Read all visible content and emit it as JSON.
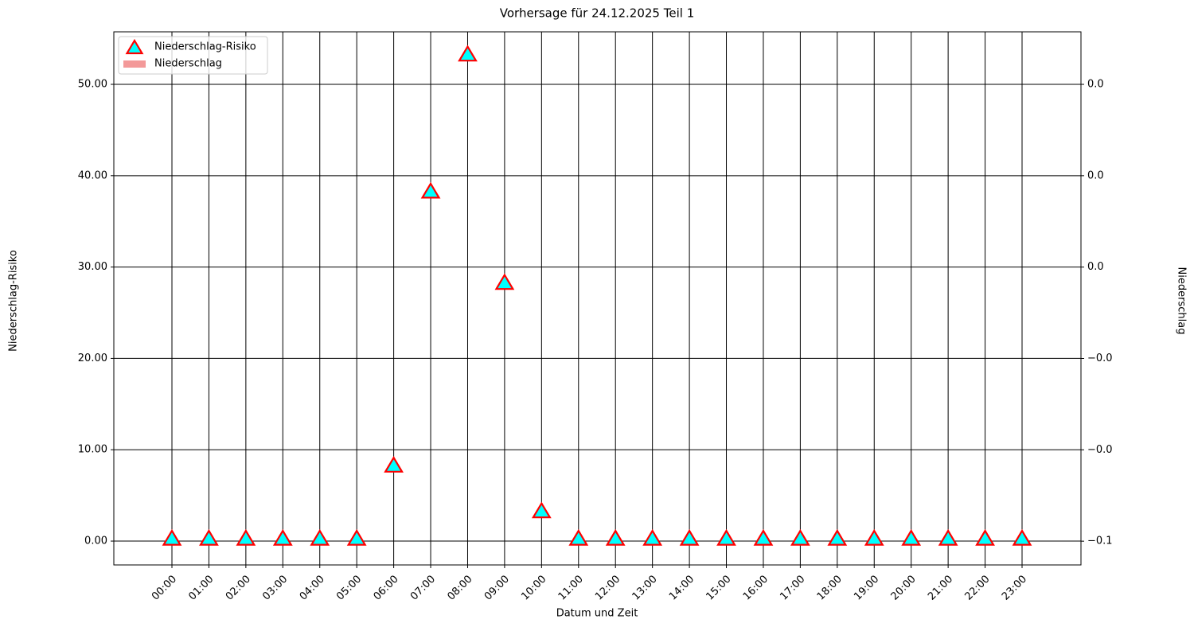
{
  "chart_data": {
    "type": "combo",
    "title": "Vorhersage für 24.12.2025 Teil 1",
    "x_label": "Datum und Zeit",
    "y_label": "Niederschlag-Risiko",
    "y2_label": "Niederschlag",
    "categories": [
      "00:00",
      "01:00",
      "02:00",
      "03:00",
      "04:00",
      "05:00",
      "06:00",
      "07:00",
      "08:00",
      "09:00",
      "10:00",
      "11:00",
      "12:00",
      "13:00",
      "14:00",
      "15:00",
      "16:00",
      "17:00",
      "18:00",
      "19:00",
      "20:00",
      "21:00",
      "22:00",
      "23:00"
    ],
    "series": [
      {
        "name": "Niederschlag-Risiko",
        "type": "scatter",
        "marker": "triangle",
        "color": "#00ffff",
        "edge_color": "#ff0000",
        "values": [
          0,
          0,
          0,
          0,
          0,
          0,
          8,
          38,
          53,
          28,
          3,
          0,
          0,
          0,
          0,
          0,
          0,
          0,
          0,
          0,
          0,
          0,
          0,
          0
        ]
      },
      {
        "name": "Niederschlag",
        "type": "bar",
        "axis": "y2",
        "color": "#f08080",
        "values": [
          0,
          0,
          0,
          0,
          0,
          0,
          0,
          0,
          0,
          0,
          0,
          0,
          0,
          0,
          0,
          0,
          0,
          0,
          0,
          0,
          0,
          0,
          0,
          0
        ]
      }
    ],
    "ylim": [
      -2.61,
      55.75
    ],
    "yticks": [
      {
        "value": 0,
        "label": "0.00"
      },
      {
        "value": 10,
        "label": "10.00"
      },
      {
        "value": 20,
        "label": "20.00"
      },
      {
        "value": 30,
        "label": "30.00"
      },
      {
        "value": 40,
        "label": "40.00"
      },
      {
        "value": 50,
        "label": "50.00"
      }
    ],
    "y2lim": [
      -0.0652,
      0.0515
    ],
    "y2ticks": [
      {
        "value": -0.06,
        "label": "−0.1"
      },
      {
        "value": -0.04,
        "label": "−0.0"
      },
      {
        "value": -0.02,
        "label": "−0.0"
      },
      {
        "value": 0,
        "label": "0.0"
      },
      {
        "value": 0.02,
        "label": "0.0"
      },
      {
        "value": 0.04,
        "label": "0.0"
      }
    ],
    "grid": true,
    "legend": "upper left"
  }
}
